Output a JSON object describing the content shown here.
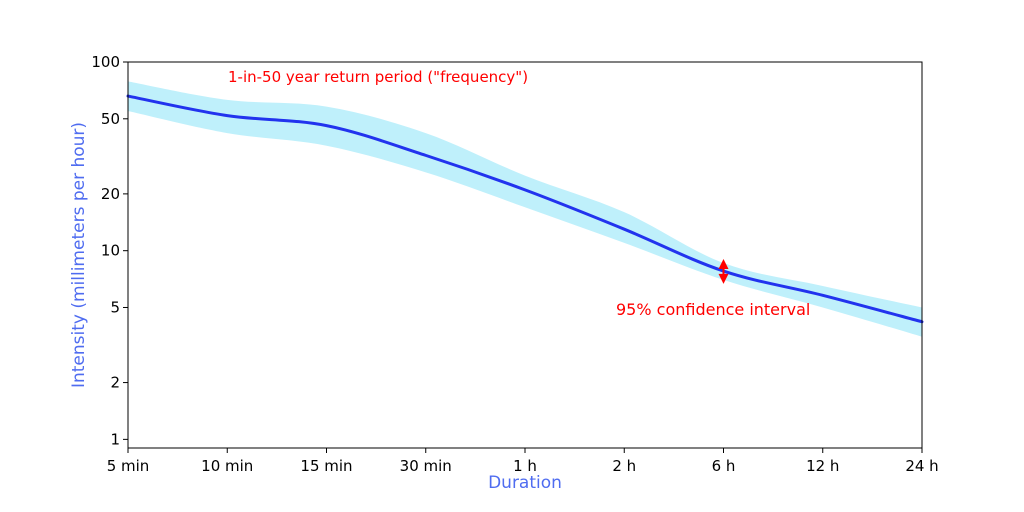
{
  "chart_data": {
    "type": "line",
    "title": "",
    "xlabel": "Duration",
    "ylabel": "Intensity (millimeters per hour)",
    "x_ticks": [
      "5 min",
      "10 min",
      "15 min",
      "30 min",
      "1 h",
      "2 h",
      "6 h",
      "12 h",
      "24 h"
    ],
    "y_scale": "log",
    "ylim": [
      0.9,
      100
    ],
    "y_ticks": [
      1,
      2,
      5,
      10,
      20,
      50,
      100
    ],
    "series": [
      {
        "values": [
          66,
          52,
          46,
          32,
          21,
          13,
          7.8,
          5.8,
          4.2
        ],
        "lower": [
          55,
          42,
          36,
          26,
          17,
          11,
          7.0,
          5.0,
          3.5
        ],
        "upper": [
          79,
          63,
          58,
          42,
          25,
          16,
          8.6,
          6.5,
          5.0
        ]
      }
    ],
    "annotations": {
      "frequency": "1-in-50 year return period (\"frequency\")",
      "ci": "95% confidence interval"
    },
    "grid": false,
    "colors": {
      "line": "#2233ee",
      "band": "#bff0fb",
      "axis_title": "#4f6cf0",
      "annotation": "#ff0000"
    }
  }
}
